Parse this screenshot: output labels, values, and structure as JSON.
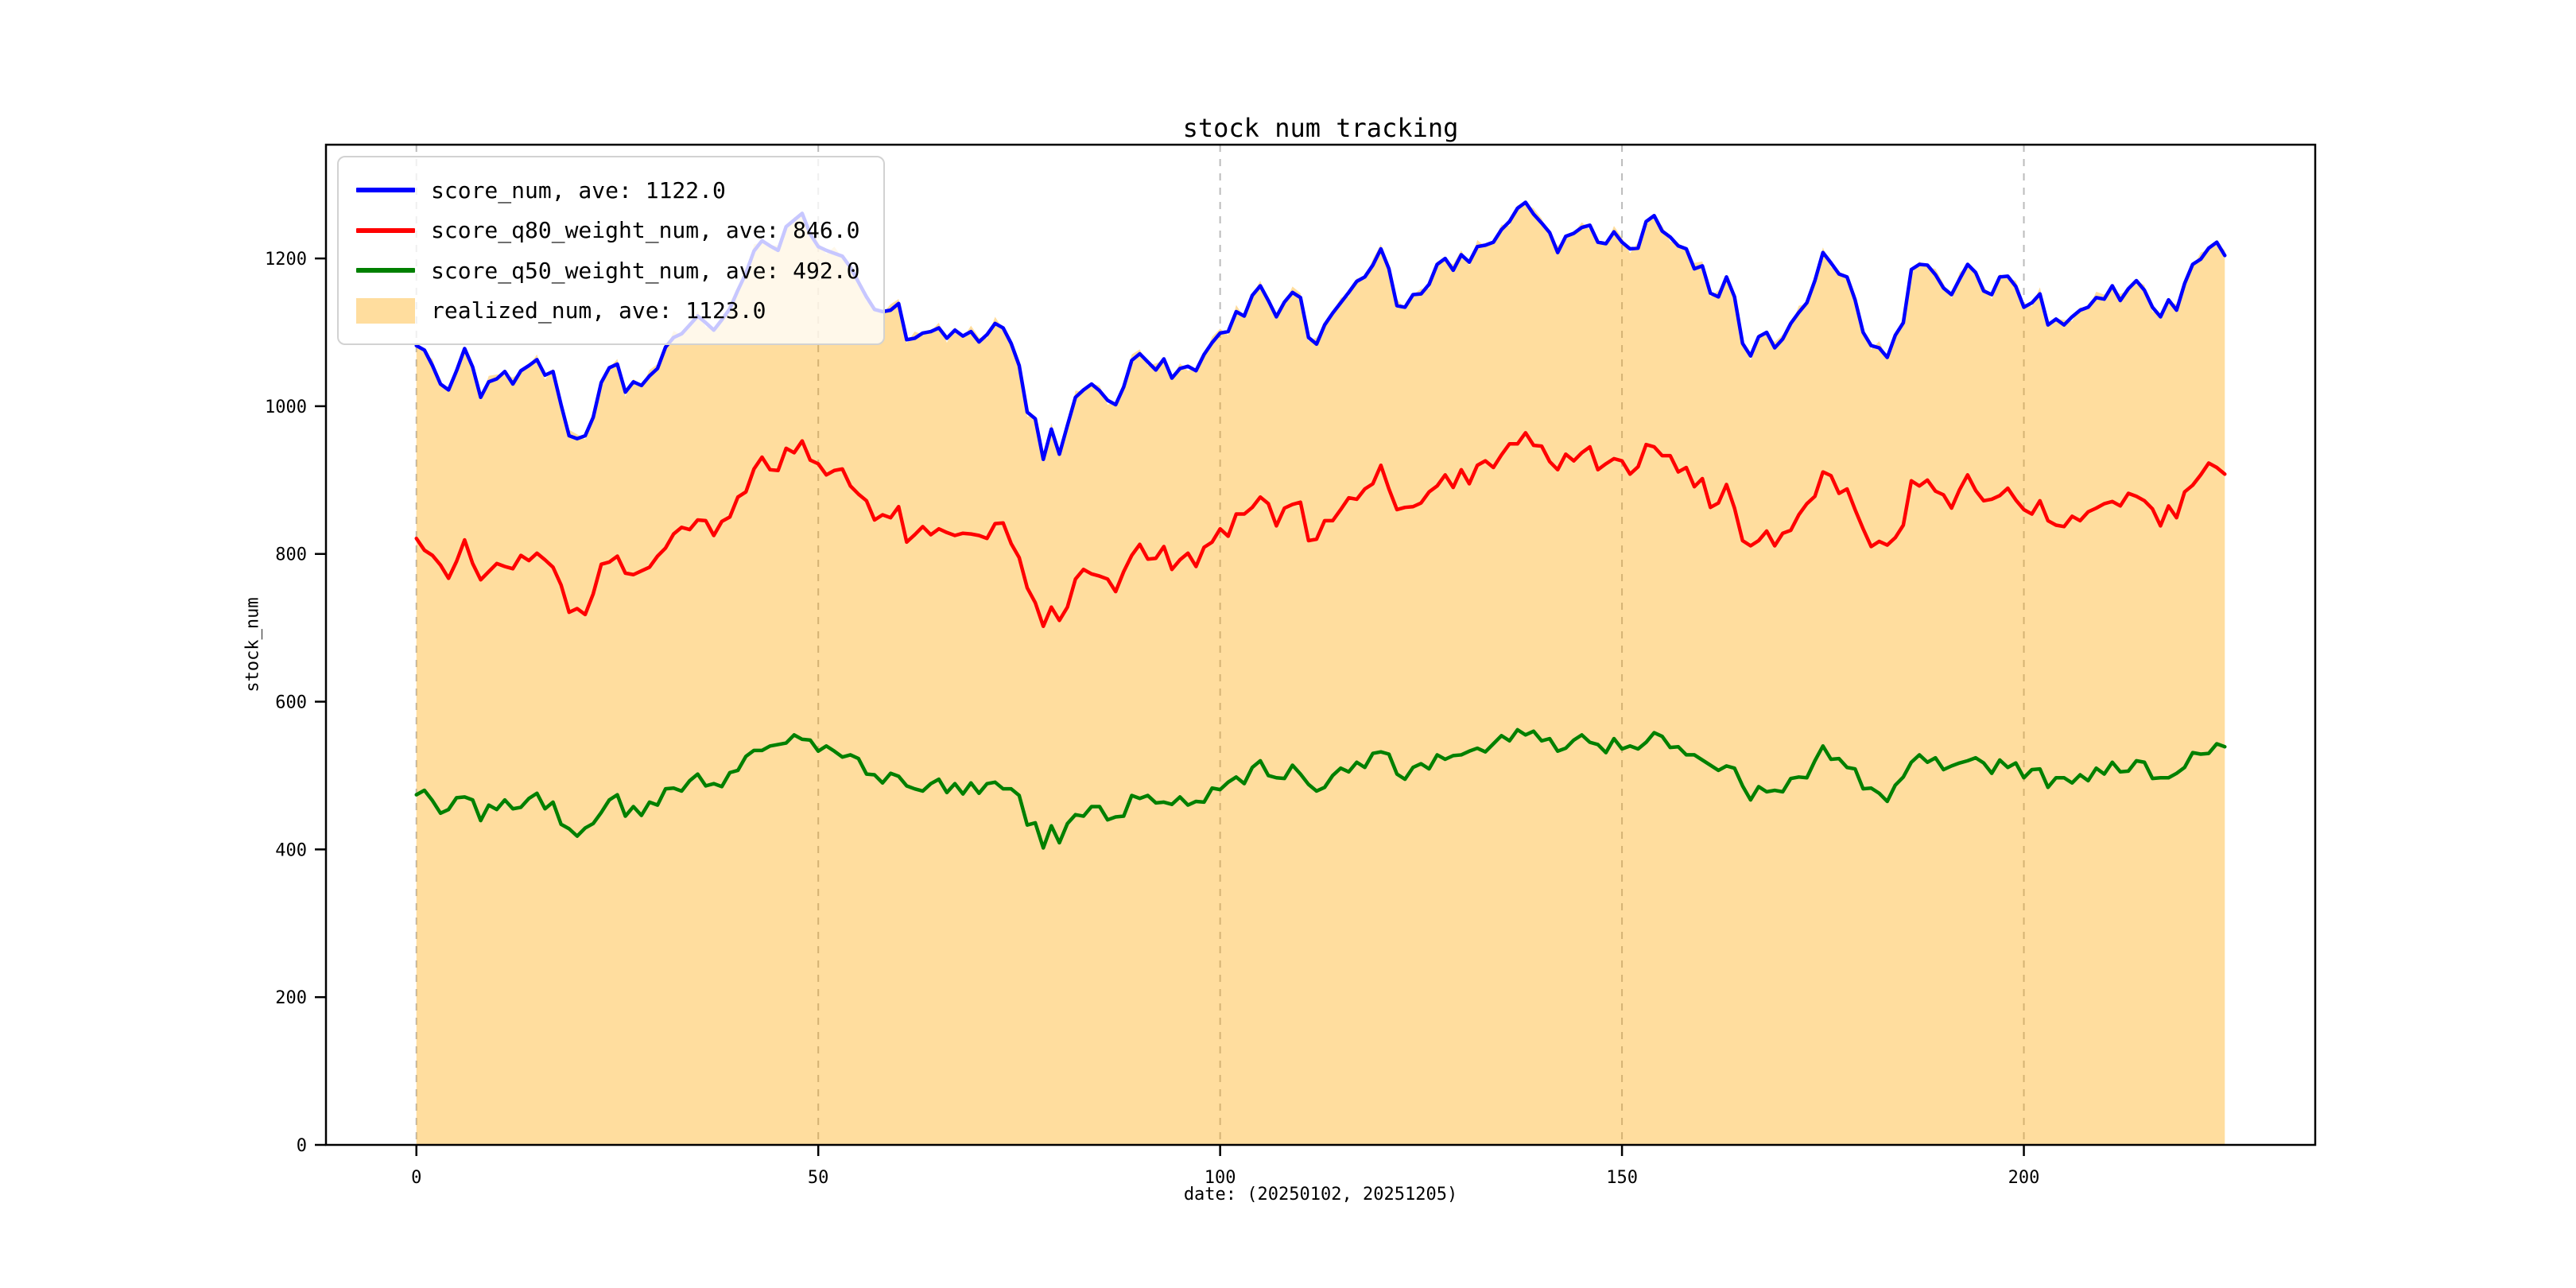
{
  "chart_data": {
    "type": "line",
    "title": "stock num tracking",
    "xlabel": "date: (20250102, 20251205)",
    "ylabel": "stock_num",
    "x_ticks": [
      0,
      50,
      100,
      150,
      200
    ],
    "y_ticks": [
      0,
      200,
      400,
      600,
      800,
      1000,
      1200
    ],
    "xlim": [
      -11.25,
      236.25
    ],
    "ylim": [
      0,
      1354
    ],
    "grid": "vertical-dashed-at-x-ticks",
    "grid_color": "#bbbbbb",
    "legend_position": "upper left",
    "background": "#ffffff",
    "x_start": 0,
    "x_step": 1,
    "series": [
      {
        "name": "score_num, ave: 1122.0",
        "type": "line",
        "color": "#0000ff",
        "values": [
          1082,
          1076,
          1055,
          1030,
          1022,
          1048,
          1078,
          1053,
          1012,
          1033,
          1037,
          1047,
          1030,
          1048,
          1055,
          1063,
          1042,
          1047,
          1002,
          960,
          956,
          960,
          985,
          1032,
          1052,
          1057,
          1019,
          1033,
          1028,
          1041,
          1051,
          1080,
          1093,
          1098,
          1110,
          1122,
          1113,
          1103,
          1117,
          1132,
          1157,
          1180,
          1210,
          1224,
          1217,
          1211,
          1243,
          1252,
          1261,
          1233,
          1216,
          1211,
          1207,
          1203,
          1188,
          1168,
          1148,
          1131,
          1128,
          1130,
          1139,
          1090,
          1092,
          1099,
          1101,
          1106,
          1092,
          1103,
          1095,
          1101,
          1087,
          1097,
          1112,
          1106,
          1085,
          1055,
          992,
          983,
          928,
          969,
          935,
          974,
          1012,
          1022,
          1030,
          1021,
          1008,
          1002,
          1026,
          1062,
          1071,
          1060,
          1049,
          1064,
          1038,
          1051,
          1054,
          1048,
          1070,
          1086,
          1099,
          1101,
          1128,
          1122,
          1150,
          1163,
          1143,
          1121,
          1141,
          1154,
          1147,
          1093,
          1084,
          1110,
          1126,
          1140,
          1154,
          1169,
          1175,
          1191,
          1213,
          1186,
          1136,
          1134,
          1151,
          1152,
          1165,
          1192,
          1200,
          1184,
          1205,
          1195,
          1216,
          1218,
          1222,
          1239,
          1250,
          1268,
          1276,
          1260,
          1248,
          1235,
          1208,
          1230,
          1234,
          1242,
          1245,
          1222,
          1220,
          1236,
          1222,
          1213,
          1214,
          1250,
          1258,
          1237,
          1229,
          1217,
          1213,
          1186,
          1190,
          1153,
          1148,
          1175,
          1148,
          1085,
          1068,
          1094,
          1100,
          1079,
          1091,
          1112,
          1127,
          1140,
          1170,
          1208,
          1194,
          1179,
          1175,
          1144,
          1100,
          1082,
          1079,
          1066,
          1096,
          1113,
          1185,
          1192,
          1191,
          1178,
          1160,
          1151,
          1172,
          1192,
          1181,
          1156,
          1151,
          1175,
          1176,
          1162,
          1134,
          1140,
          1152,
          1110,
          1118,
          1110,
          1121,
          1130,
          1134,
          1147,
          1145,
          1163,
          1143,
          1159,
          1170,
          1157,
          1134,
          1121,
          1144,
          1130,
          1166,
          1192,
          1199,
          1214,
          1222,
          1204
        ]
      },
      {
        "name": "score_q80_weight_num, ave: 846.0",
        "type": "line",
        "color": "#ff0000",
        "values": [
          821,
          805,
          798,
          785,
          767,
          790,
          819,
          787,
          765,
          776,
          787,
          783,
          780,
          798,
          791,
          801,
          792,
          782,
          758,
          721,
          726,
          718,
          746,
          786,
          789,
          797,
          774,
          772,
          777,
          782,
          797,
          808,
          827,
          836,
          833,
          846,
          845,
          825,
          844,
          850,
          877,
          884,
          915,
          931,
          914,
          913,
          943,
          937,
          953,
          927,
          922,
          907,
          913,
          915,
          892,
          881,
          872,
          846,
          853,
          849,
          864,
          816,
          826,
          837,
          826,
          834,
          829,
          825,
          828,
          827,
          825,
          821,
          841,
          842,
          814,
          795,
          754,
          734,
          702,
          728,
          710,
          728,
          766,
          779,
          773,
          770,
          766,
          749,
          776,
          798,
          813,
          793,
          794,
          810,
          779,
          792,
          801,
          783,
          809,
          816,
          834,
          824,
          854,
          854,
          863,
          877,
          868,
          838,
          862,
          867,
          870,
          818,
          820,
          845,
          845,
          860,
          876,
          874,
          888,
          895,
          920,
          888,
          860,
          863,
          864,
          869,
          884,
          892,
          907,
          890,
          914,
          895,
          920,
          926,
          917,
          934,
          949,
          949,
          964,
          947,
          946,
          925,
          914,
          935,
          926,
          937,
          945,
          914,
          922,
          929,
          926,
          908,
          918,
          948,
          945,
          933,
          933,
          911,
          917,
          891,
          902,
          863,
          869,
          894,
          862,
          818,
          811,
          818,
          831,
          811,
          828,
          832,
          853,
          868,
          878,
          911,
          906,
          882,
          888,
          860,
          834,
          810,
          817,
          812,
          822,
          839,
          899,
          892,
          900,
          885,
          880,
          862,
          887,
          907,
          886,
          872,
          874,
          879,
          889,
          873,
          860,
          854,
          872,
          845,
          839,
          837,
          851,
          845,
          857,
          862,
          868,
          871,
          865,
          882,
          878,
          872,
          861,
          838,
          865,
          849,
          884,
          893,
          907,
          923,
          917,
          908
        ]
      },
      {
        "name": "score_q50_weight_num, ave: 492.0",
        "type": "line",
        "color": "#008000",
        "values": [
          474,
          480,
          466,
          449,
          454,
          470,
          471,
          467,
          439,
          460,
          454,
          467,
          455,
          457,
          469,
          476,
          455,
          464,
          434,
          428,
          418,
          429,
          435,
          450,
          467,
          474,
          445,
          458,
          446,
          464,
          460,
          482,
          483,
          479,
          493,
          502,
          486,
          489,
          485,
          504,
          507,
          526,
          534,
          534,
          540,
          542,
          544,
          555,
          549,
          548,
          533,
          540,
          533,
          525,
          528,
          523,
          502,
          501,
          490,
          503,
          499,
          486,
          482,
          479,
          489,
          495,
          477,
          489,
          475,
          490,
          476,
          489,
          491,
          482,
          482,
          473,
          433,
          436,
          402,
          432,
          409,
          435,
          447,
          445,
          458,
          458,
          440,
          444,
          445,
          473,
          469,
          473,
          463,
          464,
          461,
          471,
          460,
          465,
          464,
          483,
          481,
          491,
          498,
          489,
          511,
          520,
          500,
          497,
          496,
          514,
          502,
          488,
          479,
          484,
          500,
          510,
          505,
          518,
          511,
          530,
          532,
          529,
          502,
          495,
          511,
          516,
          509,
          528,
          522,
          527,
          528,
          533,
          537,
          532,
          543,
          554,
          547,
          562,
          555,
          560,
          547,
          550,
          533,
          537,
          548,
          555,
          545,
          542,
          531,
          550,
          536,
          540,
          536,
          545,
          558,
          553,
          538,
          539,
          528,
          528,
          521,
          514,
          507,
          513,
          510,
          486,
          467,
          485,
          478,
          480,
          478,
          496,
          498,
          497,
          520,
          540,
          522,
          523,
          511,
          509,
          482,
          483,
          476,
          465,
          487,
          498,
          518,
          528,
          518,
          524,
          508,
          513,
          517,
          520,
          524,
          517,
          503,
          521,
          511,
          517,
          497,
          508,
          509,
          484,
          497,
          497,
          490,
          501,
          493,
          510,
          502,
          518,
          505,
          506,
          520,
          518,
          496,
          497,
          497,
          503,
          511,
          531,
          529,
          530,
          543,
          539
        ]
      },
      {
        "name": "realized_num, ave: 1123.0",
        "type": "area",
        "color": "#ffa500",
        "fill_opacity": 0.38,
        "values": [
          1088,
          1071,
          1064,
          1028,
          1022,
          1055,
          1072,
          1057,
          1009,
          1041,
          1043,
          1042,
          1039,
          1046,
          1055,
          1070,
          1036,
          1051,
          999,
          968,
          962,
          955,
          994,
          1030,
          1052,
          1064,
          1013,
          1037,
          1025,
          1049,
          1057,
          1075,
          1102,
          1096,
          1110,
          1129,
          1107,
          1107,
          1114,
          1140,
          1163,
          1175,
          1219,
          1222,
          1217,
          1218,
          1237,
          1256,
          1258,
          1241,
          1222,
          1206,
          1216,
          1201,
          1188,
          1175,
          1142,
          1135,
          1125,
          1138,
          1145,
          1085,
          1101,
          1097,
          1101,
          1113,
          1086,
          1107,
          1092,
          1109,
          1093,
          1092,
          1121,
          1104,
          1085,
          1062,
          986,
          987,
          925,
          977,
          941,
          969,
          1021,
          1020,
          1030,
          1028,
          1002,
          1006,
          1023,
          1070,
          1077,
          1055,
          1058,
          1062,
          1038,
          1058,
          1048,
          1052,
          1067,
          1094,
          1105,
          1096,
          1137,
          1120,
          1150,
          1170,
          1137,
          1125,
          1138,
          1162,
          1153,
          1088,
          1093,
          1108,
          1126,
          1147,
          1148,
          1173,
          1172,
          1199,
          1219,
          1181,
          1145,
          1132,
          1151,
          1159,
          1159,
          1196,
          1197,
          1192,
          1211,
          1190,
          1225,
          1216,
          1222,
          1246,
          1244,
          1272,
          1273,
          1268,
          1254,
          1230,
          1217,
          1228,
          1234,
          1249,
          1239,
          1226,
          1217,
          1244,
          1228,
          1207,
          1222,
          1245,
          1258,
          1244,
          1223,
          1221,
          1210,
          1194,
          1196,
          1148,
          1157,
          1173,
          1148,
          1092,
          1062,
          1098,
          1097,
          1087,
          1097,
          1107,
          1136,
          1138,
          1170,
          1215,
          1188,
          1183,
          1172,
          1152,
          1106,
          1077,
          1088,
          1064,
          1096,
          1120,
          1179,
          1196,
          1188,
          1186,
          1166,
          1146,
          1181,
          1190,
          1181,
          1163,
          1145,
          1179,
          1173,
          1170,
          1140,
          1135,
          1161,
          1108,
          1118,
          1117,
          1115,
          1134,
          1131,
          1155,
          1151,
          1158,
          1152,
          1157,
          1170,
          1164,
          1128,
          1125,
          1141,
          1138,
          1172,
          1187,
          1208,
          1212,
          1222,
          1211
        ]
      }
    ]
  }
}
